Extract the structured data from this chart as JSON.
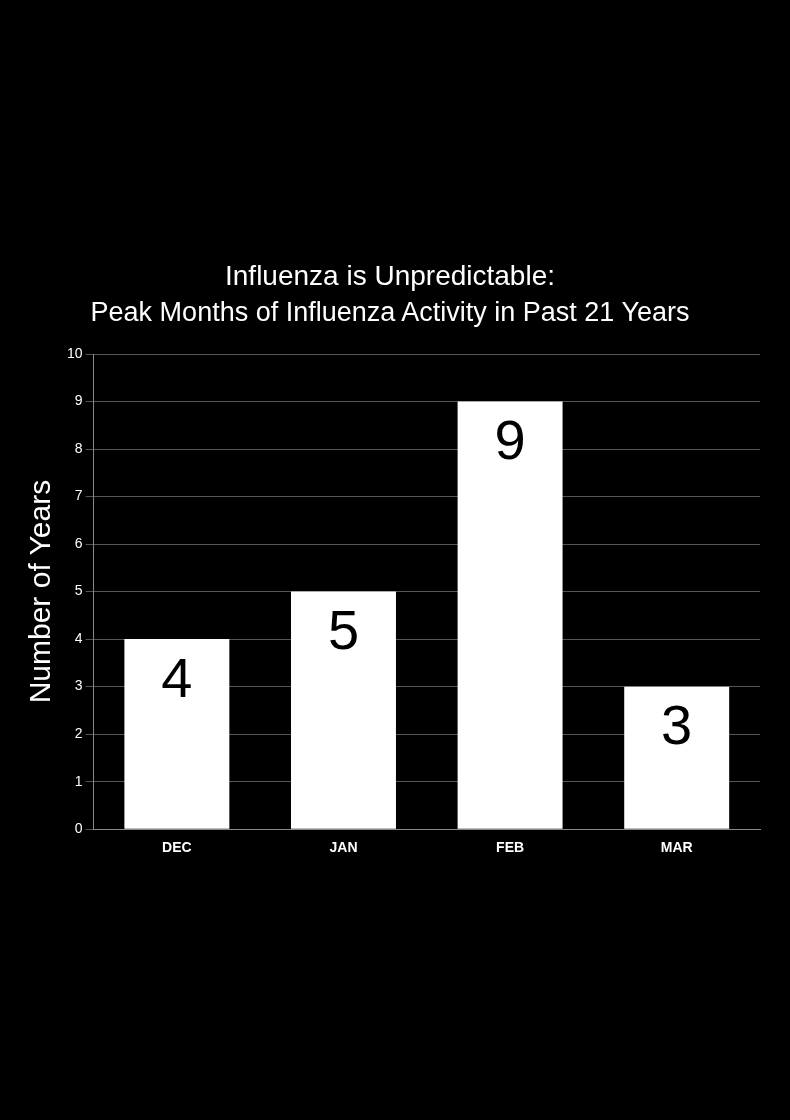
{
  "chart_data": {
    "type": "bar",
    "title": "Influenza is Unpredictable:",
    "subtitle": "Peak Months of Influenza Activity in Past 21 Years",
    "ylabel": "Number of Years",
    "categories": [
      "DEC",
      "JAN",
      "FEB",
      "MAR"
    ],
    "values": [
      4,
      5,
      9,
      3
    ],
    "color": "#ffffff",
    "ylim": [
      0,
      10
    ],
    "yticks": [
      0,
      1,
      2,
      3,
      4,
      5,
      6,
      7,
      8,
      9,
      10
    ],
    "grid": "y",
    "legend": false,
    "data_labels": true
  }
}
